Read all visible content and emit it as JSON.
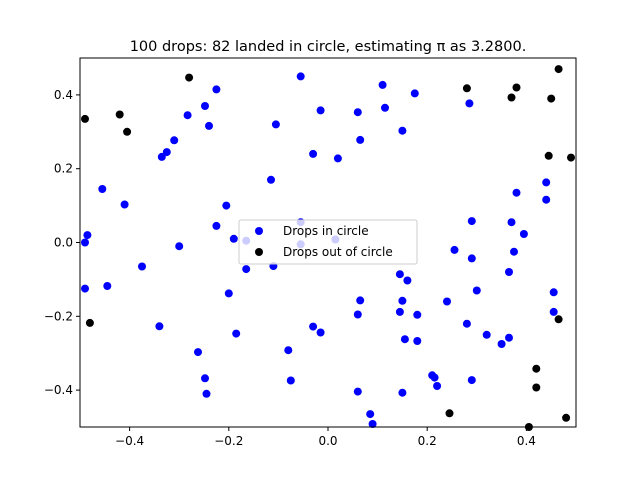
{
  "chart_data": {
    "type": "scatter",
    "title": "100 drops: 82 landed in circle, estimating π as 3.2800.",
    "xlabel": "",
    "ylabel": "",
    "xlim": [
      -0.5,
      0.5
    ],
    "ylim": [
      -0.5,
      0.5
    ],
    "x_ticks": [
      "−0.4",
      "−0.2",
      "0.0",
      "0.2",
      "0.4"
    ],
    "x_tick_values": [
      -0.4,
      -0.2,
      0.0,
      0.2,
      0.4
    ],
    "y_ticks": [
      "−0.4",
      "−0.2",
      "0.0",
      "0.2",
      "0.4"
    ],
    "y_tick_values": [
      -0.4,
      -0.2,
      0.0,
      0.2,
      0.4
    ],
    "grid": false,
    "legend_position": "center",
    "series": [
      {
        "name": "Drops in circle",
        "color": "#0000ff",
        "points": [
          [
            -0.49,
            0.0
          ],
          [
            -0.485,
            0.02
          ],
          [
            -0.49,
            -0.125
          ],
          [
            -0.455,
            0.145
          ],
          [
            -0.445,
            -0.118
          ],
          [
            -0.41,
            0.103
          ],
          [
            -0.375,
            -0.065
          ],
          [
            -0.34,
            -0.227
          ],
          [
            -0.335,
            0.232
          ],
          [
            -0.325,
            0.245
          ],
          [
            -0.31,
            0.277
          ],
          [
            -0.3,
            -0.01
          ],
          [
            -0.283,
            0.345
          ],
          [
            -0.262,
            -0.297
          ],
          [
            -0.248,
            0.37
          ],
          [
            -0.24,
            0.316
          ],
          [
            -0.248,
            -0.368
          ],
          [
            -0.245,
            -0.41
          ],
          [
            -0.225,
            0.415
          ],
          [
            -0.225,
            0.045
          ],
          [
            -0.205,
            0.1
          ],
          [
            -0.2,
            -0.138
          ],
          [
            -0.19,
            0.01
          ],
          [
            -0.185,
            -0.247
          ],
          [
            -0.165,
            0.005
          ],
          [
            -0.165,
            -0.072
          ],
          [
            -0.115,
            0.17
          ],
          [
            -0.105,
            0.32
          ],
          [
            -0.11,
            -0.064
          ],
          [
            -0.08,
            -0.292
          ],
          [
            -0.075,
            -0.374
          ],
          [
            -0.055,
            0.45
          ],
          [
            -0.055,
            0.055
          ],
          [
            -0.055,
            -0.005
          ],
          [
            -0.03,
            0.24
          ],
          [
            -0.03,
            -0.228
          ],
          [
            -0.015,
            0.358
          ],
          [
            -0.015,
            -0.244
          ],
          [
            0.015,
            0.008
          ],
          [
            0.02,
            0.228
          ],
          [
            0.06,
            0.353
          ],
          [
            0.065,
            0.278
          ],
          [
            0.065,
            -0.157
          ],
          [
            0.06,
            -0.195
          ],
          [
            0.06,
            -0.404
          ],
          [
            0.085,
            -0.465
          ],
          [
            0.09,
            -0.492
          ],
          [
            0.11,
            0.427
          ],
          [
            0.115,
            0.365
          ],
          [
            0.145,
            -0.086
          ],
          [
            0.15,
            0.303
          ],
          [
            0.15,
            -0.158
          ],
          [
            0.145,
            -0.188
          ],
          [
            0.155,
            -0.262
          ],
          [
            0.15,
            -0.407
          ],
          [
            0.16,
            -0.103
          ],
          [
            0.175,
            0.404
          ],
          [
            0.18,
            -0.196
          ],
          [
            0.18,
            -0.267
          ],
          [
            0.21,
            -0.36
          ],
          [
            0.215,
            -0.366
          ],
          [
            0.22,
            -0.389
          ],
          [
            0.24,
            -0.16
          ],
          [
            0.255,
            -0.02
          ],
          [
            0.28,
            -0.22
          ],
          [
            0.285,
            0.377
          ],
          [
            0.29,
            0.058
          ],
          [
            0.29,
            -0.043
          ],
          [
            0.29,
            -0.373
          ],
          [
            0.3,
            -0.13
          ],
          [
            0.32,
            -0.25
          ],
          [
            0.35,
            -0.275
          ],
          [
            0.365,
            -0.258
          ],
          [
            0.37,
            0.055
          ],
          [
            0.365,
            -0.08
          ],
          [
            0.375,
            -0.025
          ],
          [
            0.38,
            0.135
          ],
          [
            0.395,
            0.023
          ],
          [
            0.44,
            0.163
          ],
          [
            0.44,
            0.116
          ],
          [
            0.455,
            -0.135
          ],
          [
            0.455,
            -0.188
          ]
        ]
      },
      {
        "name": "Drops out of circle",
        "color": "#000000",
        "points": [
          [
            -0.49,
            0.335
          ],
          [
            -0.48,
            -0.218
          ],
          [
            -0.42,
            0.347
          ],
          [
            -0.405,
            0.3
          ],
          [
            -0.28,
            0.447
          ],
          [
            0.245,
            -0.463
          ],
          [
            0.28,
            0.418
          ],
          [
            0.37,
            0.393
          ],
          [
            0.38,
            0.42
          ],
          [
            0.42,
            -0.342
          ],
          [
            0.42,
            -0.393
          ],
          [
            0.445,
            0.235
          ],
          [
            0.45,
            0.39
          ],
          [
            0.405,
            -0.5
          ],
          [
            0.465,
            0.47
          ],
          [
            0.465,
            -0.208
          ],
          [
            0.48,
            -0.475
          ],
          [
            0.49,
            0.23
          ]
        ]
      }
    ]
  }
}
